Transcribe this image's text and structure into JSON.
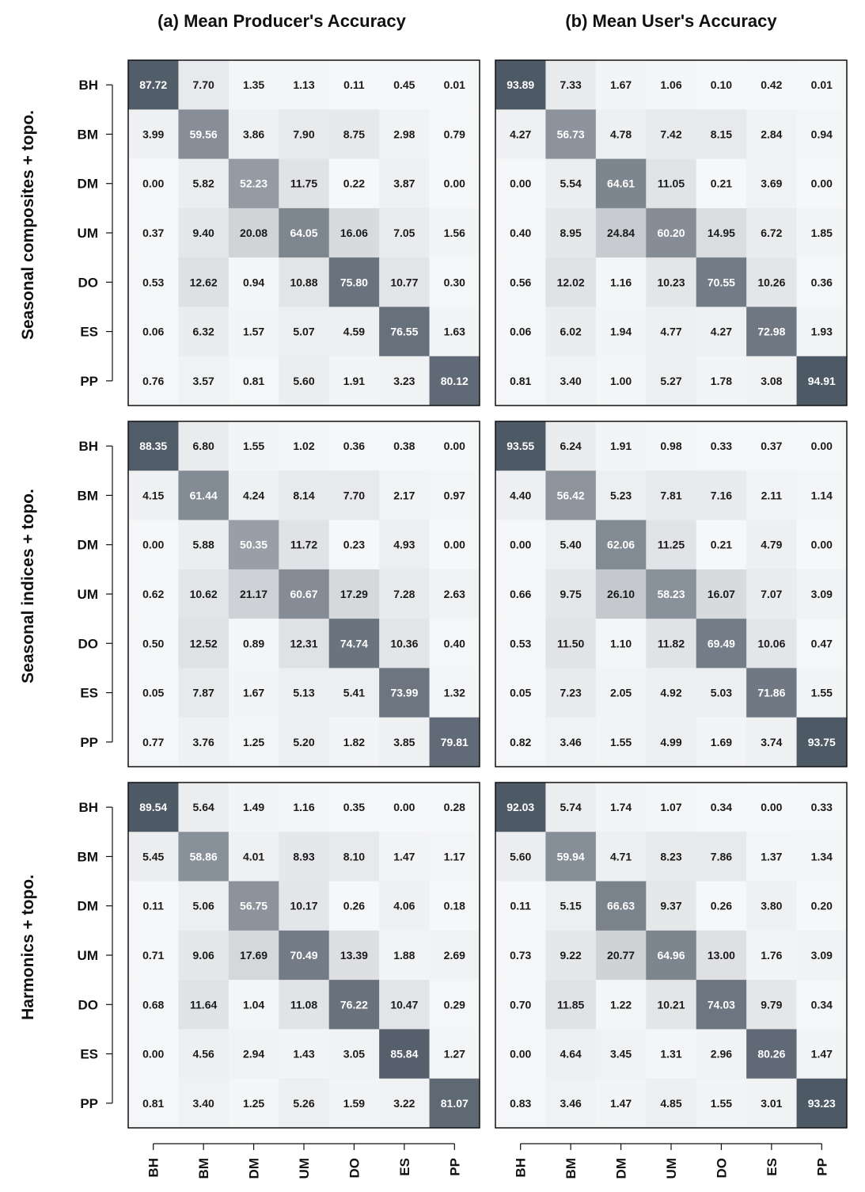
{
  "chart_data": {
    "type": "heatmap",
    "column_titles": [
      "(a) Mean Producer's Accuracy",
      "(b) Mean User's Accuracy"
    ],
    "row_titles": [
      "Seasonal composites + topo.",
      "Seasonal indices + topo.",
      "Harmonics + topo."
    ],
    "classes": [
      "BH",
      "BM",
      "DM",
      "UM",
      "DO",
      "ES",
      "PP"
    ],
    "value_range": [
      0,
      100
    ],
    "colormap": "white-to-slate-gray",
    "panels": [
      {
        "row_title": "Seasonal composites + topo.",
        "column_title": "(a) Mean Producer's Accuracy",
        "matrix": [
          [
            "87.72",
            "7.70",
            "1.35",
            "1.13",
            "0.11",
            "0.45",
            "0.01"
          ],
          [
            "3.99",
            "59.56",
            "3.86",
            "7.90",
            "8.75",
            "2.98",
            "0.79"
          ],
          [
            "0.00",
            "5.82",
            "52.23",
            "11.75",
            "0.22",
            "3.87",
            "0.00"
          ],
          [
            "0.37",
            "9.40",
            "20.08",
            "64.05",
            "16.06",
            "7.05",
            "1.56"
          ],
          [
            "0.53",
            "12.62",
            "0.94",
            "10.88",
            "75.80",
            "10.77",
            "0.30"
          ],
          [
            "0.06",
            "6.32",
            "1.57",
            "5.07",
            "4.59",
            "76.55",
            "1.63"
          ],
          [
            "0.76",
            "3.57",
            "0.81",
            "5.60",
            "1.91",
            "3.23",
            "80.12"
          ]
        ]
      },
      {
        "row_title": "Seasonal composites + topo.",
        "column_title": "(b) Mean User's Accuracy",
        "matrix": [
          [
            "93.89",
            "7.33",
            "1.67",
            "1.06",
            "0.10",
            "0.42",
            "0.01"
          ],
          [
            "4.27",
            "56.73",
            "4.78",
            "7.42",
            "8.15",
            "2.84",
            "0.94"
          ],
          [
            "0.00",
            "5.54",
            "64.61",
            "11.05",
            "0.21",
            "3.69",
            "0.00"
          ],
          [
            "0.40",
            "8.95",
            "24.84",
            "60.20",
            "14.95",
            "6.72",
            "1.85"
          ],
          [
            "0.56",
            "12.02",
            "1.16",
            "10.23",
            "70.55",
            "10.26",
            "0.36"
          ],
          [
            "0.06",
            "6.02",
            "1.94",
            "4.77",
            "4.27",
            "72.98",
            "1.93"
          ],
          [
            "0.81",
            "3.40",
            "1.00",
            "5.27",
            "1.78",
            "3.08",
            "94.91"
          ]
        ]
      },
      {
        "row_title": "Seasonal indices + topo.",
        "column_title": "(a) Mean Producer's Accuracy",
        "matrix": [
          [
            "88.35",
            "6.80",
            "1.55",
            "1.02",
            "0.36",
            "0.38",
            "0.00"
          ],
          [
            "4.15",
            "61.44",
            "4.24",
            "8.14",
            "7.70",
            "2.17",
            "0.97"
          ],
          [
            "0.00",
            "5.88",
            "50.35",
            "11.72",
            "0.23",
            "4.93",
            "0.00"
          ],
          [
            "0.62",
            "10.62",
            "21.17",
            "60.67",
            "17.29",
            "7.28",
            "2.63"
          ],
          [
            "0.50",
            "12.52",
            "0.89",
            "12.31",
            "74.74",
            "10.36",
            "0.40"
          ],
          [
            "0.05",
            "7.87",
            "1.67",
            "5.13",
            "5.41",
            "73.99",
            "1.32"
          ],
          [
            "0.77",
            "3.76",
            "1.25",
            "5.20",
            "1.82",
            "3.85",
            "79.81"
          ]
        ]
      },
      {
        "row_title": "Seasonal indices + topo.",
        "column_title": "(b) Mean User's Accuracy",
        "matrix": [
          [
            "93.55",
            "6.24",
            "1.91",
            "0.98",
            "0.33",
            "0.37",
            "0.00"
          ],
          [
            "4.40",
            "56.42",
            "5.23",
            "7.81",
            "7.16",
            "2.11",
            "1.14"
          ],
          [
            "0.00",
            "5.40",
            "62.06",
            "11.25",
            "0.21",
            "4.79",
            "0.00"
          ],
          [
            "0.66",
            "9.75",
            "26.10",
            "58.23",
            "16.07",
            "7.07",
            "3.09"
          ],
          [
            "0.53",
            "11.50",
            "1.10",
            "11.82",
            "69.49",
            "10.06",
            "0.47"
          ],
          [
            "0.05",
            "7.23",
            "2.05",
            "4.92",
            "5.03",
            "71.86",
            "1.55"
          ],
          [
            "0.82",
            "3.46",
            "1.55",
            "4.99",
            "1.69",
            "3.74",
            "93.75"
          ]
        ]
      },
      {
        "row_title": "Harmonics + topo.",
        "column_title": "(a) Mean Producer's Accuracy",
        "matrix": [
          [
            "89.54",
            "5.64",
            "1.49",
            "1.16",
            "0.35",
            "0.00",
            "0.28"
          ],
          [
            "5.45",
            "58.86",
            "4.01",
            "8.93",
            "8.10",
            "1.47",
            "1.17"
          ],
          [
            "0.11",
            "5.06",
            "56.75",
            "10.17",
            "0.26",
            "4.06",
            "0.18"
          ],
          [
            "0.71",
            "9.06",
            "17.69",
            "70.49",
            "13.39",
            "1.88",
            "2.69"
          ],
          [
            "0.68",
            "11.64",
            "1.04",
            "11.08",
            "76.22",
            "10.47",
            "0.29"
          ],
          [
            "0.00",
            "4.56",
            "2.94",
            "1.43",
            "3.05",
            "85.84",
            "1.27"
          ],
          [
            "0.81",
            "3.40",
            "1.25",
            "5.26",
            "1.59",
            "3.22",
            "81.07"
          ]
        ]
      },
      {
        "row_title": "Harmonics + topo.",
        "column_title": "(b) Mean User's Accuracy",
        "matrix": [
          [
            "92.03",
            "5.74",
            "1.74",
            "1.07",
            "0.34",
            "0.00",
            "0.33"
          ],
          [
            "5.60",
            "59.94",
            "4.71",
            "8.23",
            "7.86",
            "1.37",
            "1.34"
          ],
          [
            "0.11",
            "5.15",
            "66.63",
            "9.37",
            "0.26",
            "3.80",
            "0.20"
          ],
          [
            "0.73",
            "9.22",
            "20.77",
            "64.96",
            "13.00",
            "1.76",
            "3.09"
          ],
          [
            "0.70",
            "11.85",
            "1.22",
            "10.21",
            "74.03",
            "9.79",
            "0.34"
          ],
          [
            "0.00",
            "4.64",
            "3.45",
            "1.31",
            "2.96",
            "80.26",
            "1.47"
          ],
          [
            "0.83",
            "3.46",
            "1.47",
            "4.85",
            "1.55",
            "3.01",
            "93.23"
          ]
        ]
      }
    ]
  }
}
